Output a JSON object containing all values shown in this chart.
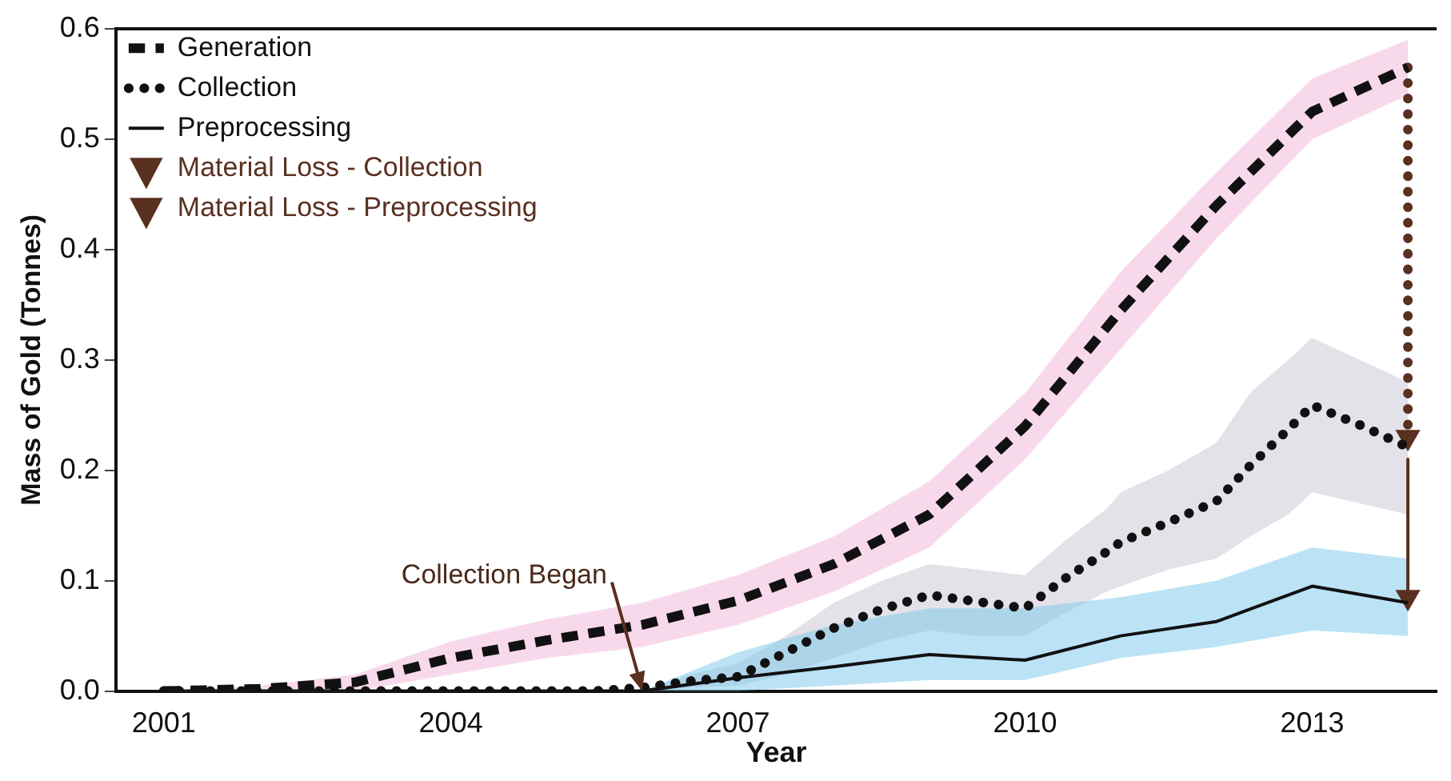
{
  "chart_data": {
    "type": "line",
    "xlabel": "Year",
    "ylabel": "Mass of Gold (Tonnes)",
    "xlim": [
      2000.5,
      2014.3
    ],
    "xticks": [
      2001,
      2004,
      2007,
      2010,
      2013
    ],
    "ylim": [
      0,
      0.6
    ],
    "yticks": [
      {
        "value": 0,
        "label": "0.0"
      },
      0.1,
      0.2,
      0.3,
      0.4,
      0.5,
      0.6
    ],
    "grid": false,
    "legend": "top left",
    "marker": "none",
    "series": [
      {
        "name": "Generation",
        "color": "#111111",
        "line_style": "dashed",
        "x": [
          2001,
          2002,
          2003,
          2004,
          2005,
          2006,
          2007,
          2008,
          2009,
          2010,
          2011,
          2012,
          2013,
          2014
        ],
        "values": [
          0,
          0.002,
          0.008,
          0.03,
          0.046,
          0.06,
          0.082,
          0.115,
          0.16,
          0.24,
          0.345,
          0.44,
          0.525,
          0.565
        ],
        "lower": [
          0,
          0,
          0,
          0.015,
          0.03,
          0.04,
          0.06,
          0.09,
          0.13,
          0.21,
          0.31,
          0.41,
          0.5,
          0.54
        ],
        "upper": [
          0,
          0.005,
          0.015,
          0.045,
          0.065,
          0.08,
          0.105,
          0.14,
          0.19,
          0.27,
          0.38,
          0.47,
          0.555,
          0.59
        ]
      },
      {
        "name": "Collection",
        "color": "#111111",
        "line_style": "dotted",
        "x": [
          2001,
          2001.5,
          2002,
          2002.5,
          2003,
          2003.5,
          2004,
          2004.5,
          2005,
          2005.5,
          2006,
          2006.5,
          2007,
          2007.5,
          2008,
          2008.5,
          2009,
          2009.5,
          2010,
          2010.4,
          2010.85,
          2011,
          2011.5,
          2012,
          2012.35,
          2012.75,
          2013,
          2013.5,
          2014
        ],
        "values": [
          0,
          0,
          0,
          0,
          0,
          0,
          0,
          0,
          0,
          0,
          0.003,
          0.009,
          0.013,
          0.035,
          0.057,
          0.074,
          0.087,
          0.081,
          0.075,
          0.101,
          0.126,
          0.135,
          0.153,
          0.172,
          0.204,
          0.237,
          0.259,
          0.241,
          0.221
        ],
        "lower": [
          0,
          0,
          0,
          0,
          0,
          0,
          0,
          0,
          0,
          0,
          0,
          0.003,
          0.005,
          0.015,
          0.03,
          0.045,
          0.055,
          0.05,
          0.05,
          0.07,
          0.09,
          0.095,
          0.11,
          0.12,
          0.14,
          0.16,
          0.18,
          0.17,
          0.16
        ],
        "upper": [
          0,
          0,
          0,
          0,
          0,
          0,
          0,
          0,
          0,
          0,
          0,
          0.015,
          0.025,
          0.05,
          0.08,
          0.1,
          0.115,
          0.11,
          0.105,
          0.135,
          0.165,
          0.18,
          0.2,
          0.225,
          0.27,
          0.3,
          0.32,
          0.3,
          0.28
        ]
      },
      {
        "name": "Preprocessing",
        "color": "#111111",
        "line_style": "solid",
        "x": [
          2001,
          2002,
          2003,
          2004,
          2005,
          2006,
          2007,
          2008,
          2009,
          2010,
          2011,
          2012,
          2013,
          2014
        ],
        "values": [
          0,
          0,
          0,
          0,
          0,
          0,
          0.012,
          0.022,
          0.033,
          0.028,
          0.05,
          0.063,
          0.095,
          0.08
        ],
        "lower": [
          0,
          0,
          0,
          0,
          0,
          0,
          0,
          0.005,
          0.01,
          0.01,
          0.03,
          0.04,
          0.055,
          0.05
        ],
        "upper": [
          0,
          0,
          0,
          0,
          0,
          0,
          0.035,
          0.06,
          0.075,
          0.075,
          0.085,
          0.1,
          0.13,
          0.12
        ]
      },
      {
        "name": "Material Loss - Collection",
        "color": "#5a3020",
        "line_style": "dotted",
        "marker": "triangle",
        "x": [
          2014,
          2014
        ],
        "values": [
          0.565,
          0.23
        ]
      },
      {
        "name": "Material Loss - Preprocessing",
        "color": "#5a3020",
        "line_style": "solid",
        "marker": "triangle",
        "x": [
          2014,
          2014
        ],
        "values": [
          0.21,
          0.085
        ]
      }
    ],
    "annotations": [
      {
        "text": "Collection Began",
        "x": 2006,
        "y": 0
      }
    ]
  }
}
